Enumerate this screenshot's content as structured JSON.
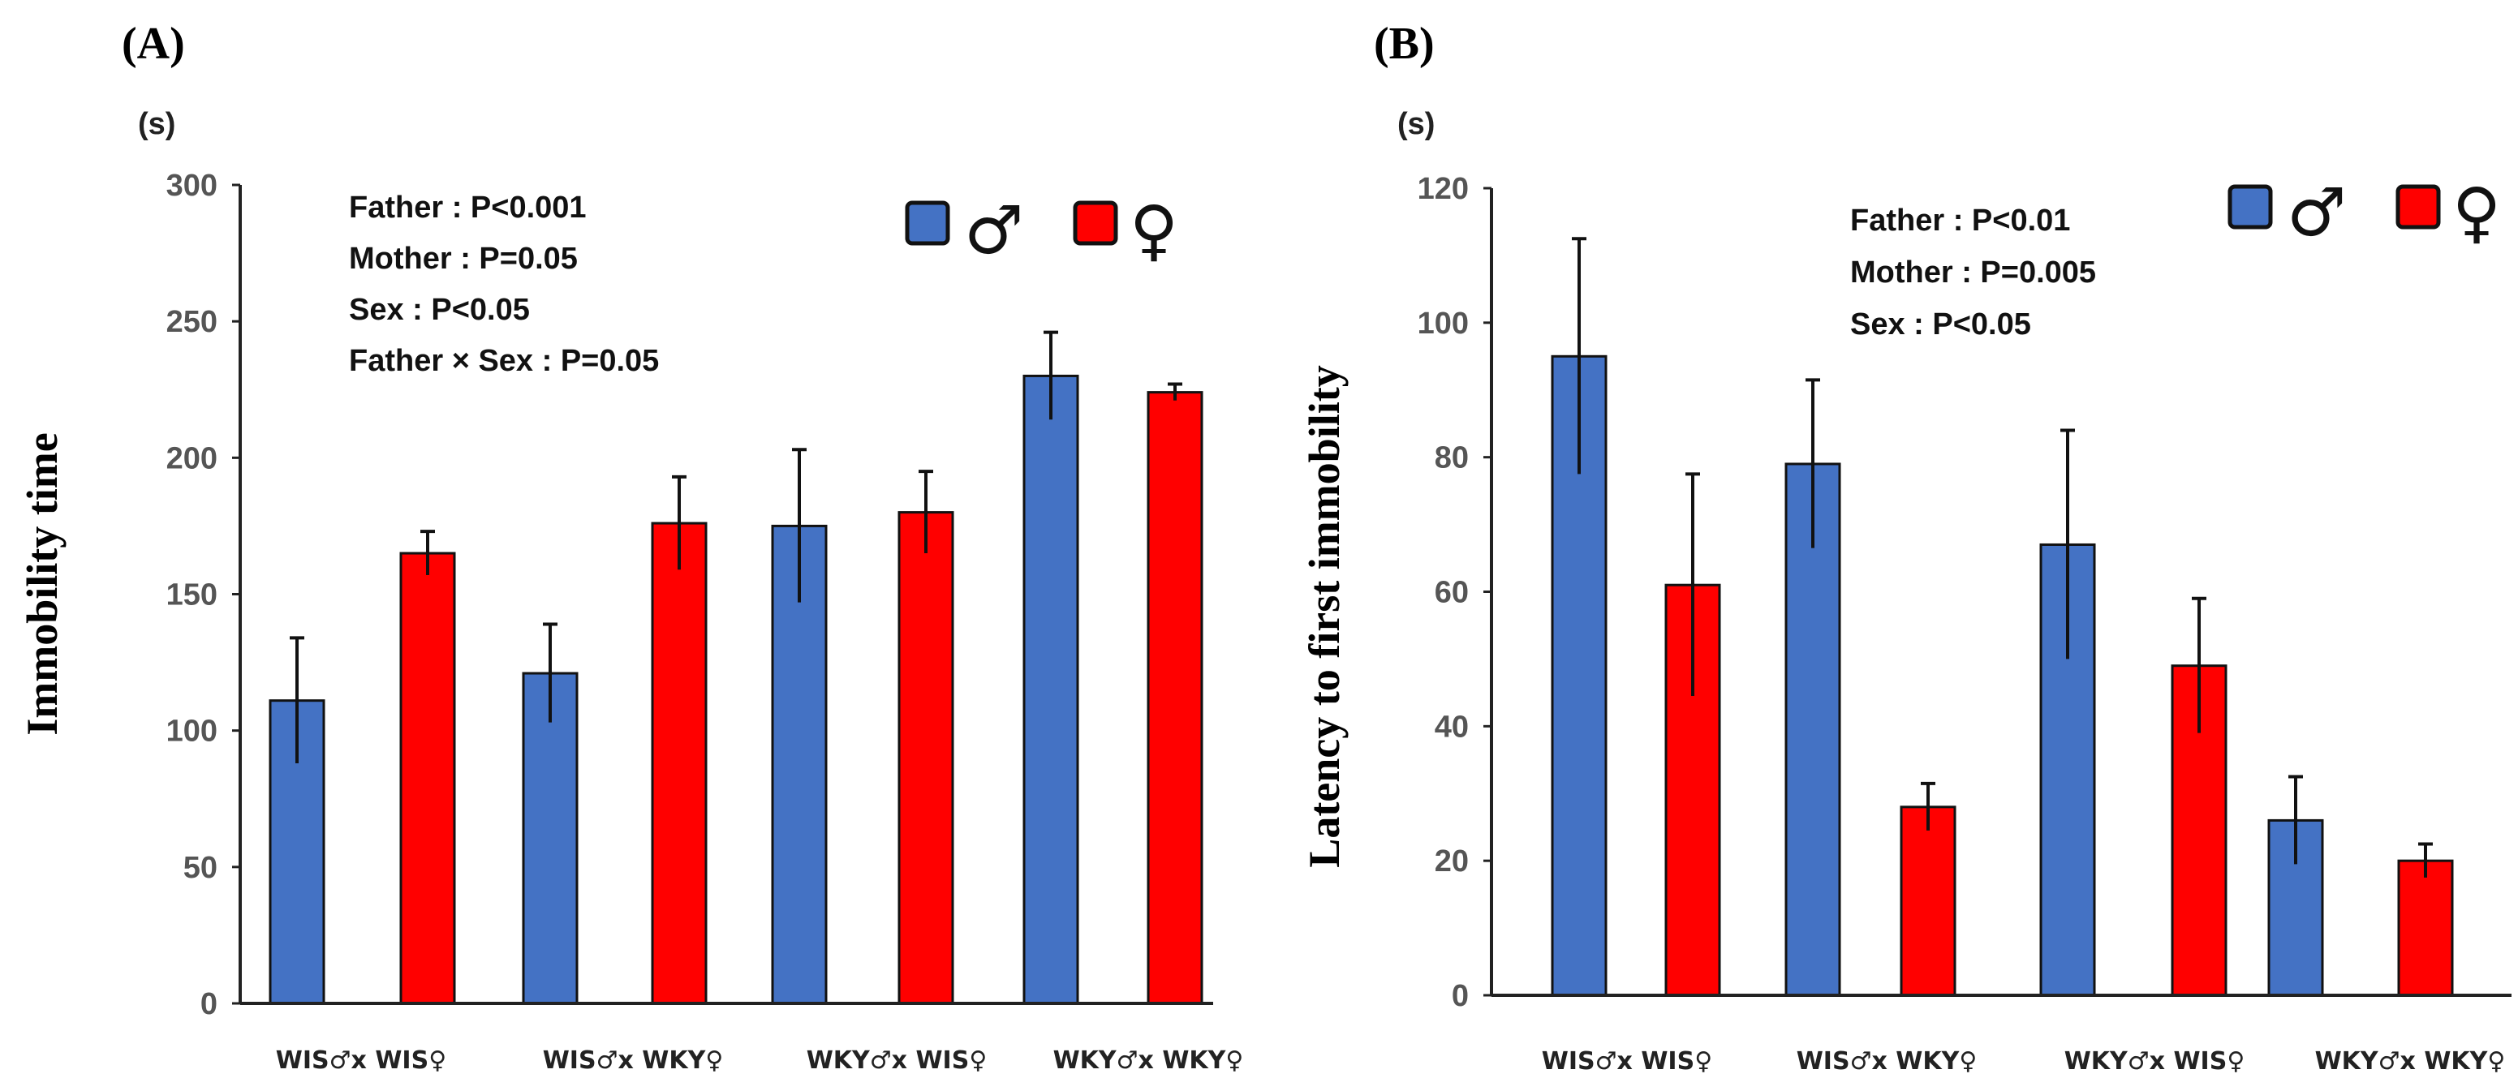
{
  "chart_data": [
    {
      "panel": "(A)",
      "type": "bar",
      "unit": "(s)",
      "ylabel": "Immobility time",
      "ylim": [
        0,
        300
      ],
      "yticks": [
        0,
        50,
        100,
        150,
        200,
        250,
        300
      ],
      "categories": [
        "WIS♂x WIS♀",
        "WIS♂x WKY♀",
        "WKY♂x WIS♀",
        "WKY♂x WKY♀"
      ],
      "series": [
        {
          "name": "♂",
          "color": "#4472C4",
          "values": [
            111,
            121,
            175,
            230
          ],
          "errors": [
            23,
            18,
            28,
            16
          ]
        },
        {
          "name": "♀",
          "color": "#FF0000",
          "values": [
            165,
            176,
            180,
            224
          ],
          "errors": [
            8,
            17,
            15,
            3
          ]
        }
      ],
      "annotations": [
        "Father : P<0.001",
        "Mother : P=0.05",
        "Sex : P<0.05",
        "Father × Sex : P=0.05"
      ],
      "legend": [
        "♂",
        "♀"
      ]
    },
    {
      "panel": "(B)",
      "type": "bar",
      "unit": "(s)",
      "ylabel": "Latency to first immobility",
      "ylim": [
        0,
        120
      ],
      "yticks": [
        0,
        20,
        40,
        60,
        80,
        100,
        120
      ],
      "categories": [
        "WIS♂x WIS♀",
        "WIS♂x WKY♀",
        "WKY♂x WIS♀",
        "WKY♂x WKY♀"
      ],
      "series": [
        {
          "name": "♂",
          "color": "#4472C4",
          "values": [
            95,
            79,
            67,
            26
          ],
          "errors": [
            17.5,
            12.5,
            17,
            6.5
          ]
        },
        {
          "name": "♀",
          "color": "#FF0000",
          "values": [
            61,
            28,
            49,
            20
          ],
          "errors": [
            16.5,
            3.5,
            10,
            2.5
          ]
        }
      ],
      "annotations": [
        "Father : P<0.01",
        "Mother : P=0.005",
        "Sex : P<0.05"
      ],
      "legend": [
        "♂",
        "♀"
      ]
    }
  ]
}
